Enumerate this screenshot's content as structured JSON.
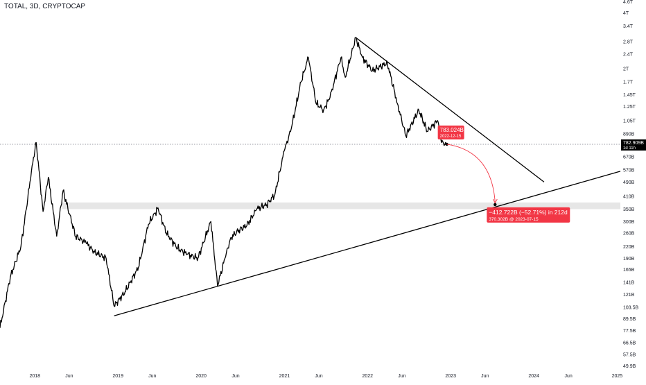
{
  "chart_data": {
    "type": "line",
    "title": "TOTAL, 3D, CRYPTOCAP",
    "y_scale": "log",
    "ylim_billions": [
      48,
      4700
    ],
    "y_ticks": [
      {
        "label": "4.6T",
        "value": 4600
      },
      {
        "label": "4T",
        "value": 4000
      },
      {
        "label": "3.4T",
        "value": 3400
      },
      {
        "label": "2.8T",
        "value": 2800
      },
      {
        "label": "2.4T",
        "value": 2400
      },
      {
        "label": "2T",
        "value": 2000
      },
      {
        "label": "1.7T",
        "value": 1700
      },
      {
        "label": "1.45T",
        "value": 1450
      },
      {
        "label": "1.25T",
        "value": 1250
      },
      {
        "label": "1.05T",
        "value": 1050
      },
      {
        "label": "890B",
        "value": 890
      },
      {
        "label": "670B",
        "value": 670
      },
      {
        "label": "570B",
        "value": 570
      },
      {
        "label": "490B",
        "value": 490
      },
      {
        "label": "410B",
        "value": 410
      },
      {
        "label": "350B",
        "value": 350
      },
      {
        "label": "300B",
        "value": 300
      },
      {
        "label": "260B",
        "value": 260
      },
      {
        "label": "220B",
        "value": 220
      },
      {
        "label": "190B",
        "value": 190
      },
      {
        "label": "165B",
        "value": 165
      },
      {
        "label": "141B",
        "value": 141
      },
      {
        "label": "121B",
        "value": 121
      },
      {
        "label": "103.5B",
        "value": 103.5
      },
      {
        "label": "89.5B",
        "value": 89.5
      },
      {
        "label": "77.5B",
        "value": 77.5
      },
      {
        "label": "66.5B",
        "value": 66.5
      },
      {
        "label": "57.5B",
        "value": 57.5
      },
      {
        "label": "49.9B",
        "value": 49.9
      }
    ],
    "x_range": [
      "2017-08-01",
      "2025-01-15"
    ],
    "x_ticks": [
      {
        "label": "2018",
        "date": "2018-01-01"
      },
      {
        "label": "Jun",
        "date": "2018-06-01"
      },
      {
        "label": "2019",
        "date": "2019-01-01"
      },
      {
        "label": "Jun",
        "date": "2019-06-01"
      },
      {
        "label": "2020",
        "date": "2020-01-01"
      },
      {
        "label": "Jun",
        "date": "2020-06-01"
      },
      {
        "label": "2021",
        "date": "2021-01-01"
      },
      {
        "label": "Jun",
        "date": "2021-06-01"
      },
      {
        "label": "2022",
        "date": "2022-01-01"
      },
      {
        "label": "Jun",
        "date": "2022-06-01"
      },
      {
        "label": "2023",
        "date": "2023-01-01"
      },
      {
        "label": "Jun",
        "date": "2023-06-01"
      },
      {
        "label": "2024",
        "date": "2024-01-01"
      },
      {
        "label": "Jun",
        "date": "2024-06-01"
      },
      {
        "label": "2025",
        "date": "2025-01-01"
      }
    ],
    "series": [
      {
        "x": [
          "2017-08-01",
          "2017-09-15",
          "2017-11-01",
          "2017-12-01",
          "2017-12-20",
          "2018-01-07",
          "2018-02-06",
          "2018-03-01",
          "2018-04-07",
          "2018-05-05",
          "2018-06-29",
          "2018-08-14",
          "2018-09-20",
          "2018-11-10",
          "2018-12-15",
          "2019-02-01",
          "2019-04-01",
          "2019-05-15",
          "2019-06-26",
          "2019-08-01",
          "2019-09-20",
          "2019-11-01",
          "2019-12-18",
          "2020-02-13",
          "2020-03-13",
          "2020-04-15",
          "2020-05-10",
          "2020-06-15",
          "2020-07-20",
          "2020-09-01",
          "2020-10-15",
          "2020-11-20",
          "2020-12-31",
          "2021-01-31",
          "2021-03-15",
          "2021-04-16",
          "2021-05-20",
          "2021-06-22",
          "2021-07-20",
          "2021-09-06",
          "2021-09-25",
          "2021-11-10",
          "2021-12-10",
          "2022-01-22",
          "2022-03-29",
          "2022-05-12",
          "2022-06-18",
          "2022-08-14",
          "2022-09-20",
          "2022-11-05",
          "2022-11-21",
          "2022-12-15"
        ],
        "y": [
          80,
          150,
          220,
          400,
          600,
          800,
          340,
          520,
          250,
          440,
          250,
          230,
          205,
          190,
          105,
          125,
          170,
          290,
          355,
          260,
          215,
          200,
          190,
          300,
          135,
          190,
          245,
          270,
          285,
          350,
          370,
          420,
          720,
          950,
          1700,
          2300,
          1300,
          1200,
          1400,
          2300,
          1800,
          2950,
          2300,
          1950,
          2150,
          1300,
          870,
          1200,
          920,
          1050,
          800,
          783
        ]
      }
    ],
    "annotations": {
      "current_price": {
        "label": "782.909B",
        "countdown": "1d 11h",
        "value": 782.909
      },
      "start_marker": {
        "value": "783.024B",
        "date": "2022-12-15"
      },
      "projection": {
        "change": "−412.722B (−52.71%) in 212d",
        "target": "370.302B @ 2023-07-15",
        "target_value": 370.302,
        "target_date": "2023-07-15"
      },
      "support_trendline": {
        "from": [
          "2018-12-15",
          93
        ],
        "to": [
          "2025-01-15",
          560
        ]
      },
      "resistance_trendline": {
        "from": [
          "2021-11-10",
          2950
        ],
        "to": [
          "2024-02-15",
          490
        ]
      },
      "horizontal_zone": {
        "low": 350,
        "high": 380,
        "from": "2018-05-01",
        "to": "2025-01-15"
      }
    },
    "colors": {
      "line": "#000000",
      "marker": "#f23645",
      "zone": "#e0e0e0",
      "axis_text": "#131722",
      "dotted": "#787b86"
    }
  }
}
